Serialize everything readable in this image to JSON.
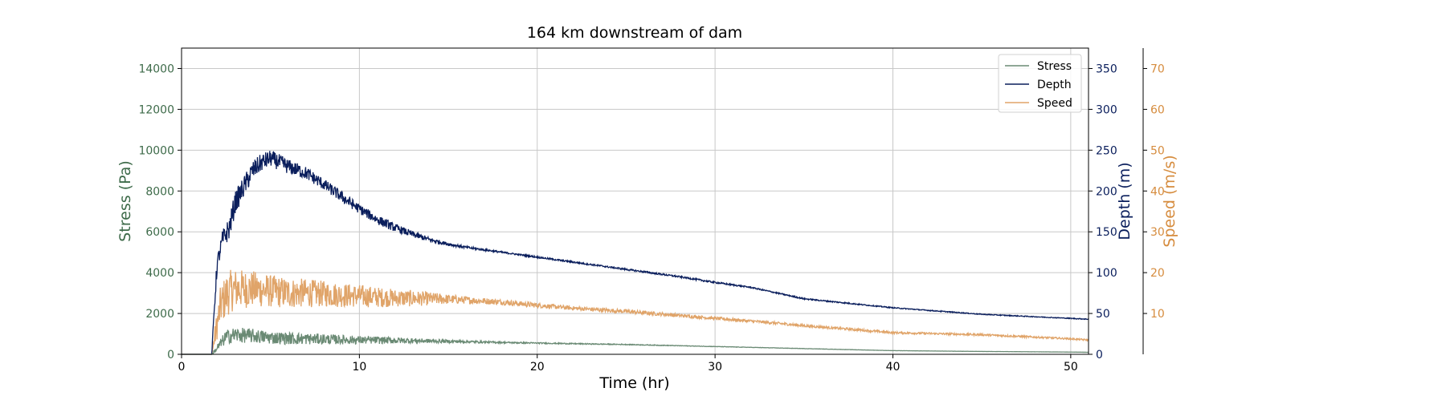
{
  "chart_data": {
    "type": "line",
    "title": "164 km downstream of dam",
    "xlabel": "Time (hr)",
    "xlim": [
      0,
      51
    ],
    "xticks": [
      0,
      10,
      20,
      30,
      40,
      50
    ],
    "grid": true,
    "legend": {
      "placement": "top-right",
      "entries": [
        "Stress",
        "Depth",
        "Speed"
      ]
    },
    "axes": [
      {
        "side": "left",
        "label": "Stress (Pa)",
        "color": "#3e6b4a",
        "ylim": [
          0,
          15000
        ],
        "ticks": [
          0,
          2000,
          4000,
          6000,
          8000,
          10000,
          12000,
          14000
        ]
      },
      {
        "side": "right",
        "label": "Depth (m)",
        "color": "#0a1e5c",
        "ylim": [
          0,
          375
        ],
        "ticks": [
          0,
          50,
          100,
          150,
          200,
          250,
          300,
          350
        ]
      },
      {
        "side": "right-outer",
        "label": "Speed (m/s)",
        "color": "#d68c3e",
        "ylim": [
          0,
          75
        ],
        "ticks": [
          10,
          20,
          30,
          40,
          50,
          60,
          70
        ]
      }
    ],
    "series": [
      {
        "name": "Stress",
        "axis": 0,
        "color": "#6a8a74",
        "x": [
          0,
          1.7,
          2.0,
          2.5,
          3,
          4,
          5,
          6,
          7,
          8,
          9,
          10,
          12,
          14,
          16,
          18,
          20,
          22,
          25,
          28,
          30,
          33,
          35,
          38,
          40,
          45,
          50,
          51
        ],
        "y": [
          0,
          0,
          300,
          850,
          950,
          900,
          820,
          780,
          760,
          740,
          720,
          700,
          680,
          650,
          620,
          580,
          550,
          520,
          480,
          420,
          380,
          320,
          280,
          220,
          180,
          140,
          110,
          100
        ],
        "noise": [
          0,
          0,
          200,
          350,
          380,
          350,
          320,
          300,
          280,
          260,
          230,
          200,
          160,
          100,
          60,
          40,
          30,
          25,
          20,
          15,
          12,
          10,
          8,
          6,
          5,
          4,
          3,
          3
        ]
      },
      {
        "name": "Depth",
        "axis": 1,
        "color": "#0a1e5c",
        "x": [
          0,
          1.7,
          1.85,
          2.0,
          2.3,
          2.7,
          3,
          3.5,
          4,
          4.5,
          5,
          5.5,
          6,
          7,
          8,
          9,
          10,
          11,
          12,
          13,
          14,
          15,
          16,
          18,
          20,
          22,
          25,
          28,
          30,
          32,
          35,
          40,
          45,
          50,
          51
        ],
        "y": [
          0,
          0,
          60,
          110,
          140,
          155,
          185,
          205,
          225,
          235,
          240,
          235,
          230,
          222,
          208,
          193,
          178,
          165,
          155,
          147,
          140,
          135,
          131,
          125,
          119,
          113,
          104,
          95,
          88,
          82,
          68,
          57,
          49,
          44,
          43
        ],
        "noise": [
          0,
          0,
          10,
          10,
          12,
          14,
          14,
          13,
          12,
          11,
          10,
          10,
          9,
          8,
          7,
          7,
          6,
          6,
          5,
          4,
          3,
          2,
          1.5,
          1,
          1,
          1,
          1,
          1,
          1,
          0.8,
          0.8,
          0.6,
          0.5,
          0.5,
          0.5
        ]
      },
      {
        "name": "Speed",
        "axis": 2,
        "color": "#e0a469",
        "x": [
          0,
          1.7,
          1.9,
          2.2,
          2.6,
          3,
          4,
          5,
          6,
          7,
          8,
          9,
          10,
          11,
          12,
          13,
          14,
          15,
          16,
          18,
          20,
          22,
          25,
          28,
          30,
          33,
          35,
          38,
          40,
          45,
          50,
          51
        ],
        "y": [
          0,
          0,
          5,
          12,
          15,
          16,
          16,
          15.5,
          15,
          15,
          14.8,
          14.5,
          14.3,
          14,
          13.8,
          13.7,
          13.6,
          13.5,
          13.3,
          12.8,
          12,
          11.3,
          10.5,
          9.5,
          8.8,
          7.8,
          7.0,
          6.0,
          5.3,
          4.8,
          3.8,
          3.5
        ],
        "noise": [
          0,
          0,
          3,
          5,
          5.5,
          5,
          4.5,
          4,
          3.8,
          3.5,
          3.2,
          3,
          2.8,
          2.5,
          2.2,
          2,
          1.6,
          1.2,
          0.9,
          0.7,
          0.6,
          0.5,
          0.5,
          0.4,
          0.4,
          0.35,
          0.3,
          0.3,
          0.25,
          0.25,
          0.2,
          0.2
        ]
      }
    ]
  }
}
